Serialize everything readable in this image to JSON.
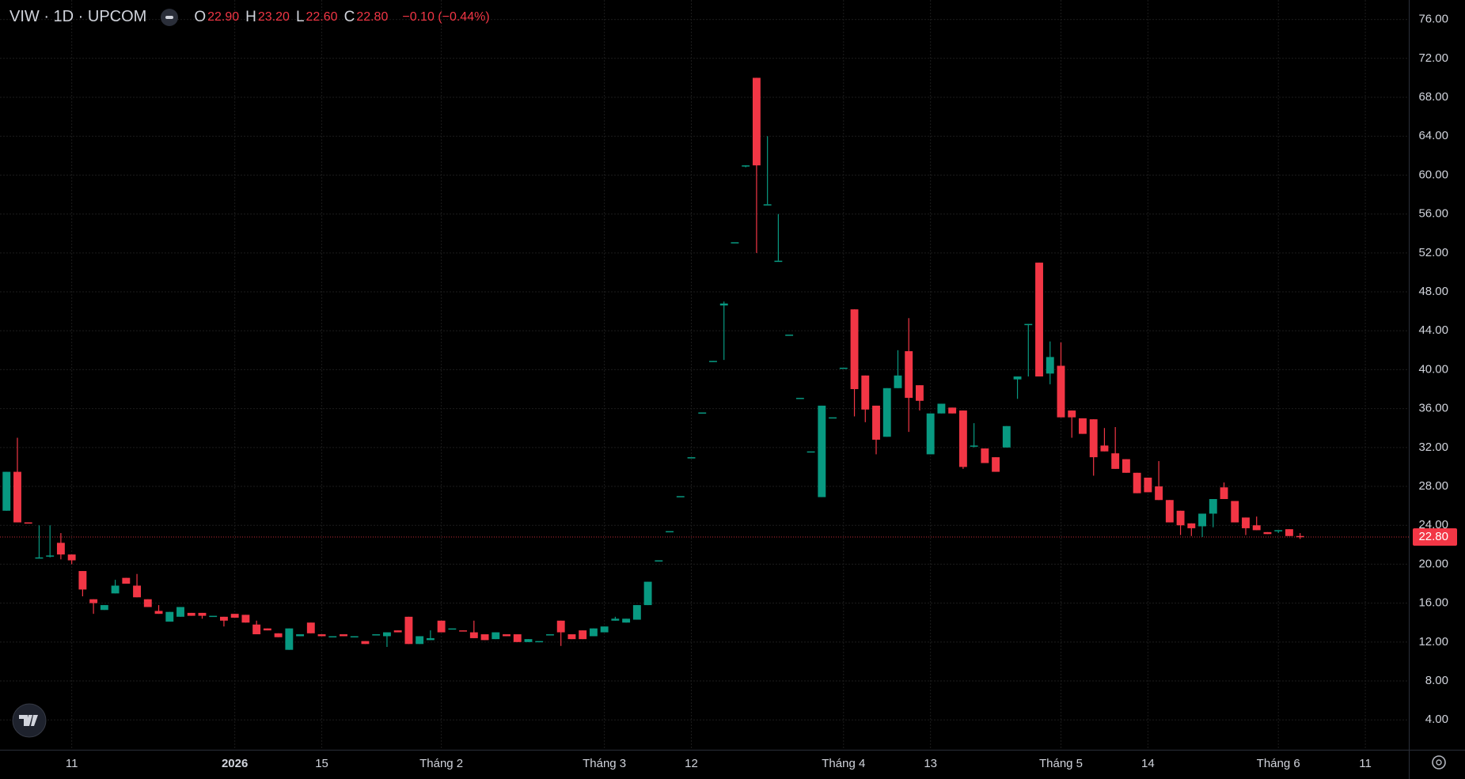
{
  "chart_data": {
    "type": "candlestick",
    "title": "VIW · 1D · UPCOM",
    "legend": [
      {
        "label": "O",
        "value": "22.90"
      },
      {
        "label": "H",
        "value": "23.20"
      },
      {
        "label": "L",
        "value": "22.60"
      },
      {
        "label": "C",
        "value": "22.80"
      }
    ],
    "change": "−0.10 (−0.44%)",
    "up_color": "#089981",
    "down_color": "#f23645",
    "open": [
      25.5,
      29.5,
      24.3,
      20.7,
      20.9,
      22.2,
      21.0,
      19.3,
      16.4,
      15.3,
      17.0,
      18.6,
      17.8,
      16.4,
      15.2,
      14.1,
      14.6,
      15.0,
      15.0,
      14.7,
      14.6,
      14.9,
      14.8,
      13.8,
      13.4,
      12.9,
      11.2,
      12.6,
      14.0,
      12.8,
      12.6,
      12.8,
      12.5,
      12.1,
      12.8,
      12.6,
      13.2,
      14.6,
      11.8,
      12.2,
      14.2,
      13.4,
      13.2,
      13.0,
      12.8,
      12.3,
      12.8,
      12.8,
      12.0,
      12.1,
      12.8,
      14.2,
      12.8,
      13.2,
      12.6,
      13.0,
      14.2,
      14.0,
      14.3,
      15.8,
      20.4,
      23.4,
      27.0,
      31.0,
      35.6,
      40.9,
      46.6,
      53.1,
      61.0,
      70.0,
      57.0,
      51.2,
      43.6,
      37.1,
      31.6,
      26.9,
      35.1,
      40.2,
      46.2,
      39.4,
      36.3,
      33.1,
      38.1,
      41.9,
      38.4,
      31.3,
      35.5,
      36.1,
      35.8,
      32.1,
      31.9,
      31.0,
      32.0,
      39.0,
      44.7,
      51.0,
      39.6,
      40.4,
      35.8,
      35.0,
      34.9,
      32.2,
      31.4,
      30.8,
      29.4,
      28.9,
      28.0,
      26.6,
      25.5,
      24.2,
      23.9,
      25.2,
      27.9,
      26.5,
      24.8,
      24.0,
      23.3,
      23.4,
      23.6,
      22.9
    ],
    "high": [
      29.5,
      33.0,
      24.3,
      24.0,
      24.0,
      23.2,
      21.0,
      19.3,
      16.4,
      15.8,
      18.4,
      18.6,
      19.0,
      16.4,
      15.8,
      15.1,
      15.6,
      15.0,
      15.0,
      14.7,
      14.6,
      14.9,
      14.8,
      14.2,
      13.4,
      12.9,
      13.4,
      12.8,
      14.0,
      12.8,
      12.6,
      12.8,
      12.6,
      12.1,
      12.8,
      13.0,
      13.2,
      14.6,
      12.6,
      13.2,
      14.2,
      13.4,
      13.2,
      14.2,
      12.8,
      13.0,
      12.8,
      12.8,
      12.3,
      12.1,
      12.8,
      14.2,
      12.8,
      13.2,
      13.4,
      13.6,
      14.6,
      14.4,
      15.8,
      18.2,
      20.4,
      23.4,
      27.0,
      31.0,
      35.6,
      40.9,
      47.0,
      53.1,
      61.0,
      70.0,
      64.0,
      56.0,
      43.6,
      37.1,
      31.6,
      36.3,
      35.1,
      40.2,
      46.2,
      39.4,
      36.3,
      38.1,
      42.0,
      45.3,
      38.4,
      35.5,
      36.5,
      36.1,
      35.8,
      34.5,
      31.9,
      31.0,
      34.2,
      39.3,
      44.7,
      51.0,
      42.9,
      42.8,
      35.8,
      35.0,
      34.9,
      34.0,
      34.1,
      30.8,
      29.4,
      28.9,
      30.6,
      26.6,
      25.5,
      24.2,
      25.2,
      26.7,
      28.4,
      26.5,
      24.8,
      24.9,
      23.3,
      23.5,
      23.6,
      23.2
    ],
    "low": [
      25.5,
      24.3,
      24.2,
      20.6,
      20.7,
      20.5,
      20.0,
      16.7,
      14.9,
      15.3,
      17.0,
      18.0,
      16.6,
      15.6,
      14.9,
      14.1,
      14.6,
      14.7,
      14.4,
      14.7,
      13.6,
      14.5,
      14.0,
      12.8,
      13.2,
      12.5,
      11.2,
      12.6,
      12.9,
      12.6,
      12.6,
      12.6,
      12.5,
      11.8,
      12.8,
      11.5,
      13.0,
      11.8,
      11.8,
      12.2,
      13.0,
      13.4,
      13.1,
      12.4,
      12.2,
      12.3,
      12.6,
      12.0,
      12.0,
      12.1,
      12.8,
      11.6,
      12.3,
      12.3,
      12.6,
      13.0,
      14.2,
      14.0,
      14.3,
      15.8,
      20.4,
      23.4,
      27.0,
      31.0,
      35.6,
      40.8,
      41.0,
      53.1,
      60.8,
      52.0,
      57.0,
      51.2,
      43.6,
      37.1,
      31.6,
      26.9,
      35.1,
      40.2,
      35.2,
      34.6,
      31.3,
      33.1,
      38.1,
      33.6,
      35.8,
      31.3,
      35.5,
      35.5,
      29.8,
      32.0,
      30.4,
      29.5,
      32.0,
      37.0,
      39.3,
      39.3,
      38.5,
      35.1,
      33.0,
      33.4,
      29.1,
      31.6,
      29.8,
      29.4,
      27.3,
      27.4,
      26.6,
      24.3,
      23.0,
      22.9,
      22.8,
      23.8,
      26.7,
      24.3,
      23.0,
      23.5,
      23.1,
      23.2,
      22.9,
      22.6
    ],
    "close": [
      29.5,
      24.3,
      24.2,
      20.7,
      20.9,
      21.0,
      20.4,
      17.4,
      16.0,
      15.8,
      17.8,
      18.0,
      16.6,
      15.6,
      14.9,
      15.1,
      15.6,
      14.7,
      14.7,
      14.7,
      14.2,
      14.5,
      14.0,
      12.8,
      13.2,
      12.5,
      13.4,
      12.8,
      12.9,
      12.6,
      12.6,
      12.6,
      12.6,
      11.8,
      12.8,
      13.0,
      13.0,
      11.8,
      12.6,
      12.4,
      13.0,
      13.4,
      13.1,
      12.4,
      12.2,
      13.0,
      12.6,
      12.0,
      12.3,
      12.1,
      12.8,
      13.0,
      12.3,
      12.3,
      13.4,
      13.6,
      14.4,
      14.4,
      15.8,
      18.2,
      20.4,
      23.4,
      27.0,
      31.0,
      35.6,
      40.9,
      46.8,
      53.1,
      61.0,
      61.0,
      57.0,
      51.2,
      43.6,
      37.1,
      31.6,
      36.3,
      35.1,
      40.2,
      38.0,
      35.9,
      32.8,
      38.1,
      39.4,
      37.1,
      36.8,
      35.5,
      36.5,
      35.5,
      30.0,
      32.2,
      30.4,
      29.5,
      34.2,
      39.3,
      44.7,
      39.3,
      41.3,
      35.1,
      35.1,
      33.4,
      31.0,
      31.6,
      29.8,
      29.4,
      27.3,
      27.4,
      26.6,
      24.3,
      24.0,
      23.7,
      25.2,
      26.7,
      26.7,
      24.3,
      23.7,
      23.5,
      23.1,
      23.5,
      22.9,
      22.8
    ],
    "last_price": {
      "value": 22.8,
      "label": "22.80"
    },
    "xlim": [
      -0.6,
      129
    ],
    "xticks": [
      {
        "value": 6,
        "label": "11"
      },
      {
        "value": 21,
        "label": "2026"
      },
      {
        "value": 29,
        "label": "15"
      },
      {
        "value": 40,
        "label": "Tháng 2"
      },
      {
        "value": 55,
        "label": "Tháng 3"
      },
      {
        "value": 63,
        "label": "12"
      },
      {
        "value": 77,
        "label": "Tháng 4"
      },
      {
        "value": 85,
        "label": "13"
      },
      {
        "value": 97,
        "label": "Tháng 5"
      },
      {
        "value": 105,
        "label": "14"
      },
      {
        "value": 117,
        "label": "Tháng 6"
      },
      {
        "value": 125,
        "label": "11"
      }
    ],
    "ylim": [
      0.93,
      78.0
    ],
    "yticks": [
      {
        "value": 4,
        "label": "4.00"
      },
      {
        "value": 8,
        "label": "8.00"
      },
      {
        "value": 12,
        "label": "12.00"
      },
      {
        "value": 16,
        "label": "16.00"
      },
      {
        "value": 20,
        "label": "20.00"
      },
      {
        "value": 24,
        "label": "24.00"
      },
      {
        "value": 28,
        "label": "28.00"
      },
      {
        "value": 32,
        "label": "32.00"
      },
      {
        "value": 36,
        "label": "36.00"
      },
      {
        "value": 40,
        "label": "40.00"
      },
      {
        "value": 44,
        "label": "44.00"
      },
      {
        "value": 48,
        "label": "48.00"
      },
      {
        "value": 52,
        "label": "52.00"
      },
      {
        "value": 56,
        "label": "56.00"
      },
      {
        "value": 60,
        "label": "60.00"
      },
      {
        "value": 64,
        "label": "64.00"
      },
      {
        "value": 68,
        "label": "68.00"
      },
      {
        "value": 72,
        "label": "72.00"
      },
      {
        "value": 76,
        "label": "76.00"
      }
    ],
    "grid": true
  }
}
